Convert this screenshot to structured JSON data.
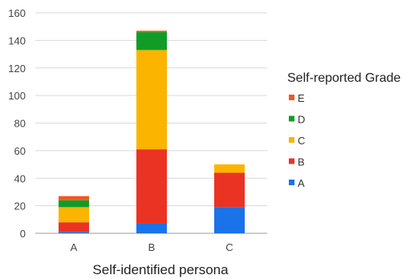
{
  "chart_data": {
    "type": "bar",
    "stacked": true,
    "title": "",
    "xlabel": "Self-identified persona",
    "ylabel": "",
    "ylim": [
      0,
      160
    ],
    "yticks": [
      0,
      20,
      40,
      60,
      80,
      100,
      120,
      140,
      160
    ],
    "grid": true,
    "legend_title": "Self-reported Grade",
    "legend_position": "right",
    "categories": [
      "A",
      "B",
      "C"
    ],
    "series": [
      {
        "name": "A",
        "color": "#1a73e8",
        "values": [
          1,
          7,
          19
        ]
      },
      {
        "name": "B",
        "color": "#ea3323",
        "values": [
          7,
          54,
          25
        ]
      },
      {
        "name": "C",
        "color": "#fbb400",
        "values": [
          11,
          72,
          6
        ]
      },
      {
        "name": "D",
        "color": "#0f9d28",
        "values": [
          5,
          13,
          0
        ]
      },
      {
        "name": "E",
        "color": "#f4561a",
        "values": [
          3,
          1,
          0
        ]
      }
    ]
  }
}
